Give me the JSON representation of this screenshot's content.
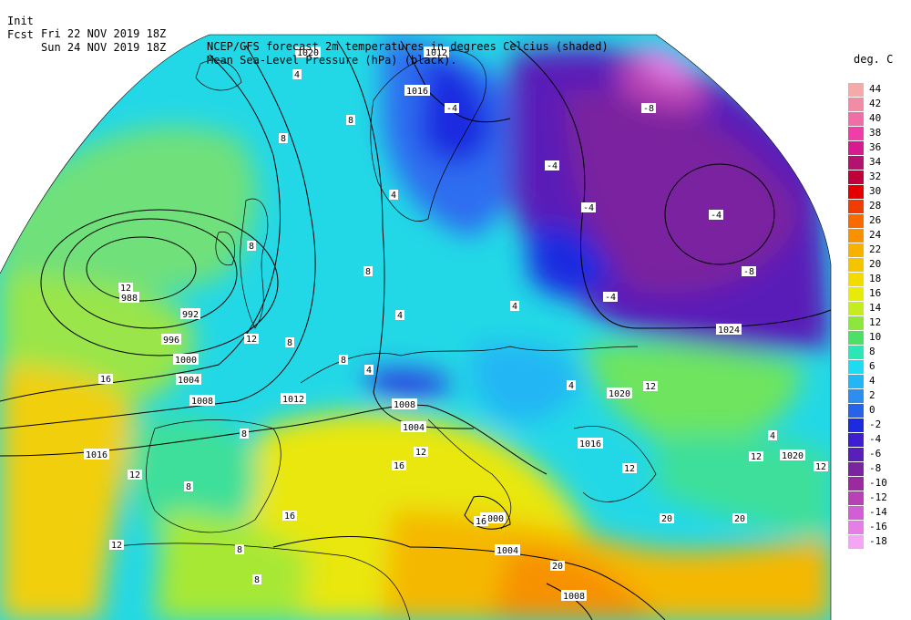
{
  "header": {
    "init_prefix": "Init",
    "init_time": "Fri 22 NOV 2019 18Z",
    "fcst_prefix": "Fcst",
    "fcst_time": "Sun 24 NOV 2019 18Z",
    "line1_desc": "NCEP/GFS forecast 2m temperatures in degrees Celcius (shaded)",
    "line2_desc": "Mean Sea-Level Pressure (hPa) (black)."
  },
  "legend": {
    "title": "deg. C",
    "levels": [
      {
        "label": "44",
        "color": "#f5a9a9"
      },
      {
        "label": "42",
        "color": "#f08ca3"
      },
      {
        "label": "40",
        "color": "#f06ea6"
      },
      {
        "label": "38",
        "color": "#ee3fa8"
      },
      {
        "label": "36",
        "color": "#d61b91"
      },
      {
        "label": "34",
        "color": "#b3126f"
      },
      {
        "label": "32",
        "color": "#c0003b"
      },
      {
        "label": "30",
        "color": "#e30000"
      },
      {
        "label": "28",
        "color": "#f03c00"
      },
      {
        "label": "26",
        "color": "#f66a00"
      },
      {
        "label": "24",
        "color": "#f79100"
      },
      {
        "label": "22",
        "color": "#f7b200"
      },
      {
        "label": "20",
        "color": "#f5c400"
      },
      {
        "label": "18",
        "color": "#f3db00"
      },
      {
        "label": "16",
        "color": "#e8ea0c"
      },
      {
        "label": "14",
        "color": "#c4ec1e"
      },
      {
        "label": "12",
        "color": "#8ce63c"
      },
      {
        "label": "10",
        "color": "#4edf67"
      },
      {
        "label": "8",
        "color": "#2de6b5"
      },
      {
        "label": "6",
        "color": "#1ddcf0"
      },
      {
        "label": "4",
        "color": "#23b6f4"
      },
      {
        "label": "2",
        "color": "#2e8ef0"
      },
      {
        "label": "0",
        "color": "#2563e8"
      },
      {
        "label": "-2",
        "color": "#1c2be0"
      },
      {
        "label": "-4",
        "color": "#3d1fd0"
      },
      {
        "label": "-6",
        "color": "#5a1fb8"
      },
      {
        "label": "-8",
        "color": "#7a249f"
      },
      {
        "label": "-10",
        "color": "#9a2a9e"
      },
      {
        "label": "-12",
        "color": "#b842b4"
      },
      {
        "label": "-14",
        "color": "#d35ed4"
      },
      {
        "label": "-16",
        "color": "#e57fe6"
      },
      {
        "label": "-18",
        "color": "#f4a6f4"
      }
    ]
  },
  "map": {
    "pressure_labels": [
      "1020",
      "1012",
      "1016",
      "988",
      "992",
      "996",
      "1000",
      "1004",
      "1008",
      "1012",
      "1008",
      "1004",
      "1016",
      "1000",
      "1004",
      "1008",
      "1020",
      "1024",
      "1020",
      "1016"
    ],
    "temperature_labels": [
      "4",
      "8",
      "8",
      "4",
      "8",
      "12",
      "8",
      "4",
      "8",
      "12",
      "16",
      "4",
      "8",
      "12",
      "16",
      "12",
      "8",
      "8",
      "16",
      "20",
      "20",
      "20",
      "12",
      "12",
      "-4",
      "-8",
      "-4",
      "-4",
      "-4",
      "-8",
      "-4",
      "4",
      "4",
      "12",
      "12",
      "16",
      "8",
      "8",
      "4",
      "12"
    ]
  }
}
